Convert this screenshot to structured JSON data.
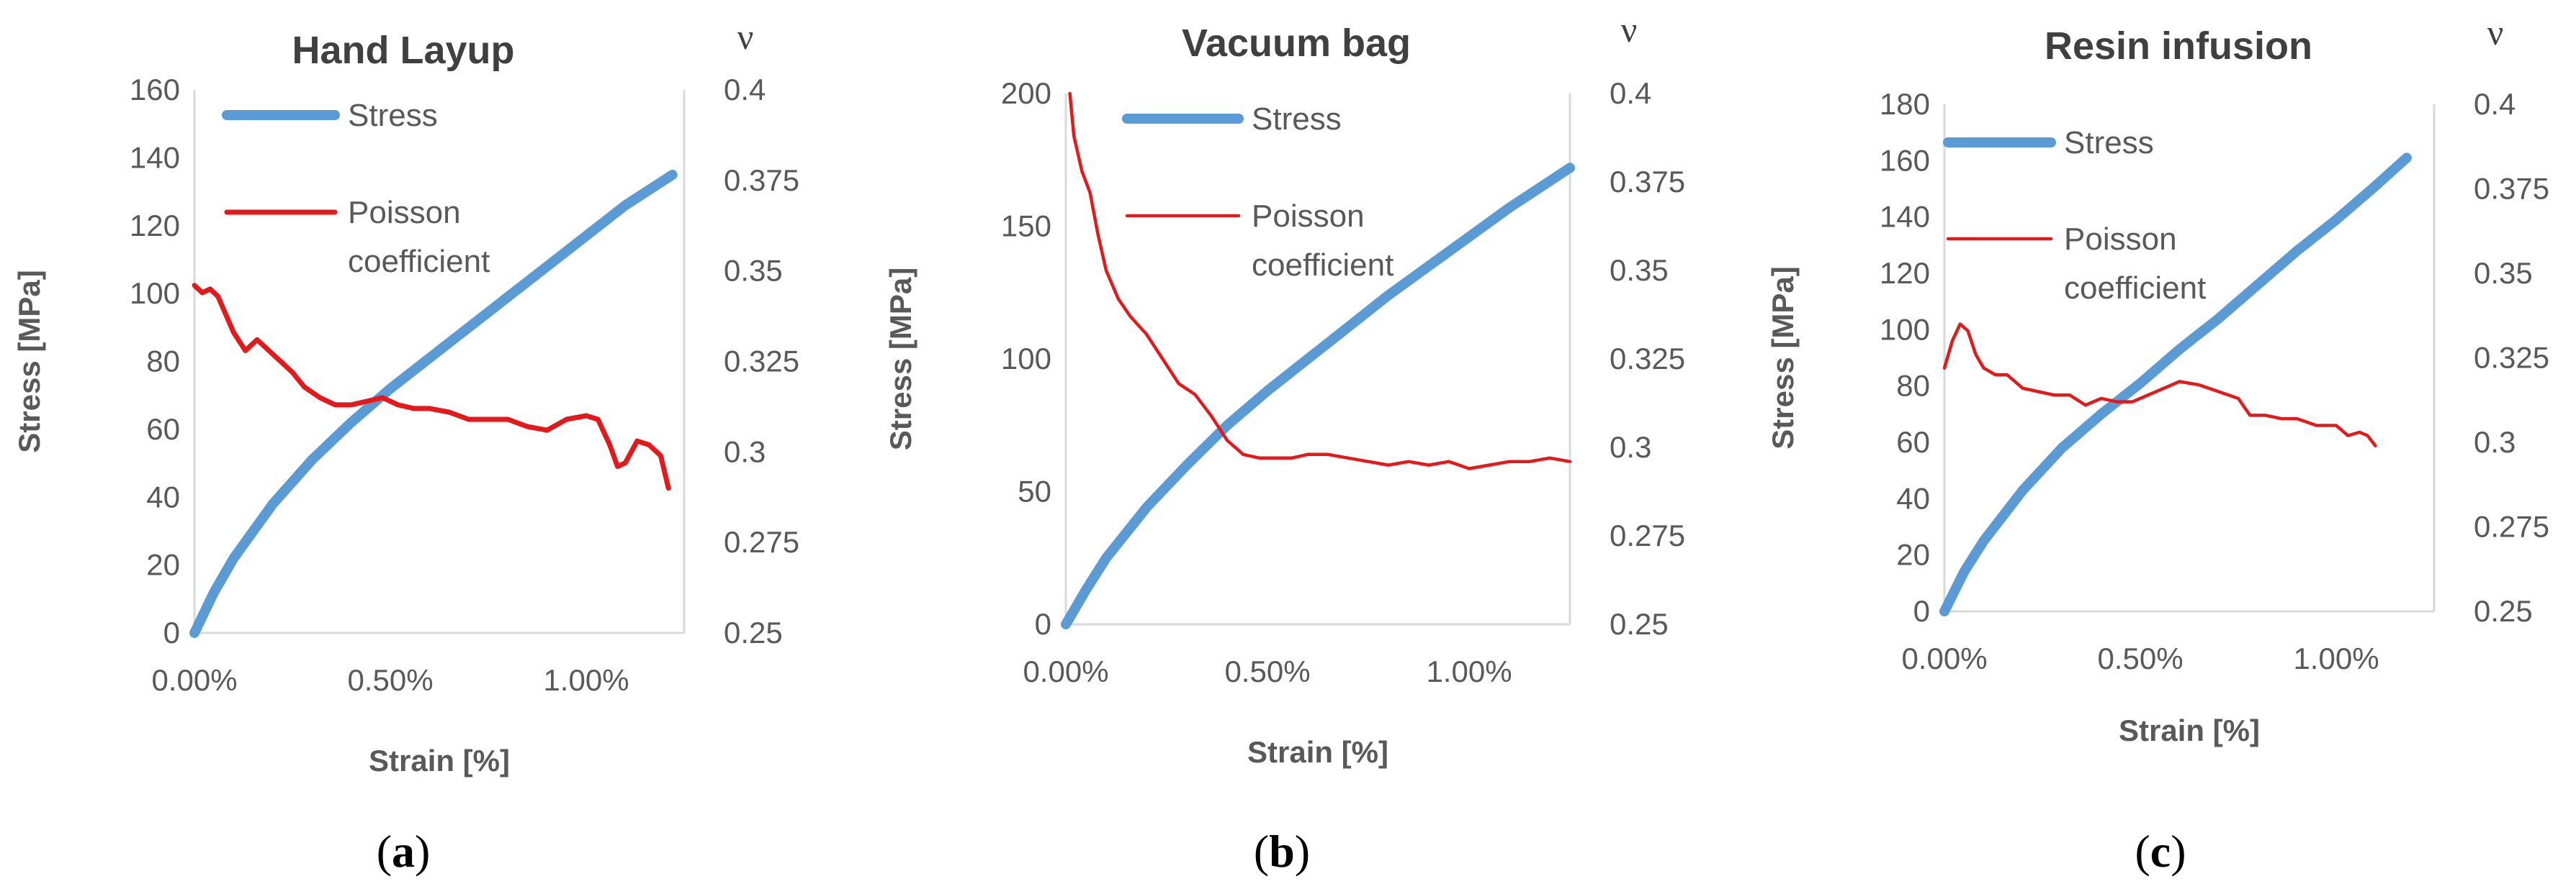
{
  "chart_data": [
    {
      "type": "line",
      "title": "Hand Layup",
      "panel_label": "a",
      "xlabel": "Strain [%]",
      "ylabel": "Stress [MPa]",
      "y2label": "ν",
      "xlim": [
        0,
        1.25
      ],
      "ylim": [
        0,
        160
      ],
      "y2lim": [
        0.25,
        0.4
      ],
      "x_ticks": [
        0,
        0.5,
        1.0
      ],
      "x_tick_labels": [
        "0.00%",
        "0.50%",
        "1.00%"
      ],
      "y_ticks": [
        0,
        20,
        40,
        60,
        80,
        100,
        120,
        140,
        160
      ],
      "y_tick_labels": [
        "0",
        "20",
        "40",
        "60",
        "80",
        "100",
        "120",
        "140",
        "160"
      ],
      "y2_ticks": [
        0.25,
        0.275,
        0.3,
        0.325,
        0.35,
        0.375,
        0.4
      ],
      "y2_tick_labels": [
        "0.25",
        "0.275",
        "0.3",
        "0.325",
        "0.35",
        "0.375",
        "0.4"
      ],
      "grid": false,
      "legend_position": "top-left",
      "series": [
        {
          "name": "Stress",
          "axis": "left",
          "color": "#5b9bd5",
          "x": [
            0,
            0.05,
            0.1,
            0.2,
            0.3,
            0.4,
            0.5,
            0.6,
            0.7,
            0.8,
            0.9,
            1.0,
            1.1,
            1.22
          ],
          "y": [
            0,
            12,
            22,
            38,
            51,
            62,
            72,
            81,
            90,
            99,
            108,
            117,
            126,
            135
          ]
        },
        {
          "name": "Poisson coefficient",
          "axis": "right",
          "color": "#e31a1c",
          "x": [
            0,
            0.02,
            0.04,
            0.06,
            0.08,
            0.1,
            0.13,
            0.16,
            0.19,
            0.22,
            0.25,
            0.28,
            0.32,
            0.36,
            0.4,
            0.44,
            0.48,
            0.52,
            0.56,
            0.6,
            0.65,
            0.7,
            0.75,
            0.8,
            0.85,
            0.9,
            0.95,
            1.0,
            1.03,
            1.06,
            1.08,
            1.1,
            1.13,
            1.16,
            1.19,
            1.21
          ],
          "y": [
            0.346,
            0.344,
            0.345,
            0.343,
            0.338,
            0.333,
            0.328,
            0.331,
            0.328,
            0.325,
            0.322,
            0.318,
            0.315,
            0.313,
            0.313,
            0.314,
            0.315,
            0.313,
            0.312,
            0.312,
            0.311,
            0.309,
            0.309,
            0.309,
            0.307,
            0.306,
            0.309,
            0.31,
            0.309,
            0.302,
            0.296,
            0.297,
            0.303,
            0.302,
            0.299,
            0.29
          ]
        }
      ]
    },
    {
      "type": "line",
      "title": "Vacuum bag",
      "panel_label": "b",
      "xlabel": "Strain [%]",
      "ylabel": "Stress [MPa]",
      "y2label": "ν",
      "xlim": [
        0,
        1.25
      ],
      "ylim": [
        0,
        200
      ],
      "y2lim": [
        0.25,
        0.4
      ],
      "x_ticks": [
        0,
        0.5,
        1.0
      ],
      "x_tick_labels": [
        "0.00%",
        "0.50%",
        "1.00%"
      ],
      "y_ticks": [
        0,
        50,
        100,
        150,
        200
      ],
      "y_tick_labels": [
        "0",
        "50",
        "100",
        "150",
        "200"
      ],
      "y2_ticks": [
        0.25,
        0.275,
        0.3,
        0.325,
        0.35,
        0.375,
        0.4
      ],
      "y2_tick_labels": [
        "0.25",
        "0.275",
        "0.3",
        "0.325",
        "0.35",
        "0.375",
        "0.4"
      ],
      "grid": false,
      "legend_position": "top-center",
      "series": [
        {
          "name": "Stress",
          "axis": "left",
          "color": "#5b9bd5",
          "x": [
            0,
            0.05,
            0.1,
            0.2,
            0.3,
            0.4,
            0.5,
            0.6,
            0.7,
            0.8,
            0.9,
            1.0,
            1.1,
            1.25
          ],
          "y": [
            0,
            13,
            25,
            44,
            60,
            75,
            88,
            100,
            112,
            124,
            135,
            146,
            157,
            172
          ]
        },
        {
          "name": "Poisson coefficient",
          "axis": "right",
          "color": "#e31a1c",
          "x": [
            0.01,
            0.02,
            0.04,
            0.06,
            0.08,
            0.1,
            0.13,
            0.16,
            0.2,
            0.24,
            0.28,
            0.32,
            0.36,
            0.4,
            0.44,
            0.48,
            0.52,
            0.56,
            0.6,
            0.65,
            0.7,
            0.75,
            0.8,
            0.85,
            0.9,
            0.95,
            1.0,
            1.05,
            1.1,
            1.15,
            1.2,
            1.25
          ],
          "y": [
            0.4,
            0.388,
            0.378,
            0.372,
            0.36,
            0.35,
            0.342,
            0.337,
            0.332,
            0.325,
            0.318,
            0.315,
            0.309,
            0.302,
            0.298,
            0.297,
            0.297,
            0.297,
            0.298,
            0.298,
            0.297,
            0.296,
            0.295,
            0.296,
            0.295,
            0.296,
            0.294,
            0.295,
            0.296,
            0.296,
            0.297,
            0.296
          ]
        }
      ]
    },
    {
      "type": "line",
      "title": "Resin infusion",
      "panel_label": "c",
      "xlabel": "Strain [%]",
      "ylabel": "Stress [MPa]",
      "y2label": "ν",
      "xlim": [
        0,
        1.25
      ],
      "ylim": [
        0,
        180
      ],
      "y2lim": [
        0.25,
        0.4
      ],
      "x_ticks": [
        0,
        0.5,
        1.0
      ],
      "x_tick_labels": [
        "0.00%",
        "0.50%",
        "1.00%"
      ],
      "y_ticks": [
        0,
        20,
        40,
        60,
        80,
        100,
        120,
        140,
        160,
        180
      ],
      "y_tick_labels": [
        "0",
        "20",
        "40",
        "60",
        "80",
        "100",
        "120",
        "140",
        "160",
        "180"
      ],
      "y2_ticks": [
        0.25,
        0.275,
        0.3,
        0.325,
        0.35,
        0.375,
        0.4
      ],
      "y2_tick_labels": [
        "0.25",
        "0.275",
        "0.3",
        "0.325",
        "0.35",
        "0.375",
        "0.4"
      ],
      "grid": false,
      "legend_position": "top-left",
      "series": [
        {
          "name": "Stress",
          "axis": "left",
          "color": "#5b9bd5",
          "x": [
            0,
            0.05,
            0.1,
            0.2,
            0.3,
            0.4,
            0.5,
            0.6,
            0.7,
            0.8,
            0.9,
            1.0,
            1.1,
            1.18
          ],
          "y": [
            0,
            14,
            25,
            43,
            58,
            70,
            81,
            93,
            104,
            116,
            128,
            139,
            151,
            161
          ]
        },
        {
          "name": "Poisson coefficient",
          "axis": "right",
          "color": "#e31a1c",
          "x": [
            0,
            0.02,
            0.04,
            0.06,
            0.08,
            0.1,
            0.13,
            0.16,
            0.2,
            0.24,
            0.28,
            0.32,
            0.36,
            0.4,
            0.44,
            0.48,
            0.52,
            0.56,
            0.6,
            0.65,
            0.7,
            0.75,
            0.78,
            0.82,
            0.86,
            0.9,
            0.95,
            1.0,
            1.03,
            1.06,
            1.08,
            1.1
          ],
          "y": [
            0.322,
            0.33,
            0.335,
            0.333,
            0.326,
            0.322,
            0.32,
            0.32,
            0.316,
            0.315,
            0.314,
            0.314,
            0.311,
            0.313,
            0.312,
            0.312,
            0.314,
            0.316,
            0.318,
            0.317,
            0.315,
            0.313,
            0.308,
            0.308,
            0.307,
            0.307,
            0.305,
            0.305,
            0.302,
            0.303,
            0.302,
            0.299
          ]
        }
      ]
    }
  ]
}
